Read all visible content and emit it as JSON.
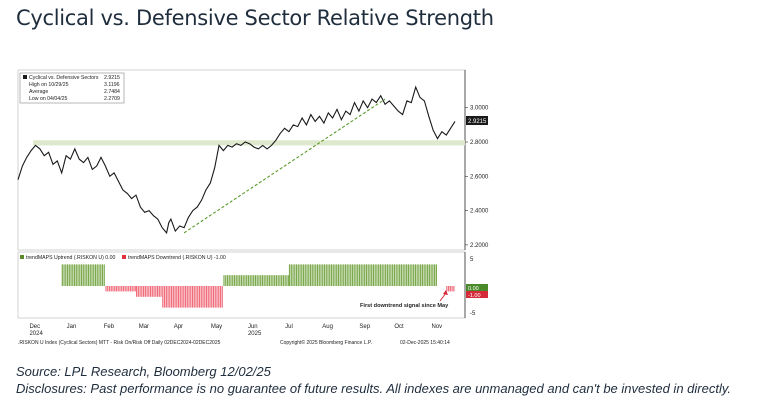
{
  "title": "Cyclical vs. Defensive Sector Relative Strength",
  "source": "Source: LPL Research, Bloomberg 12/02/25",
  "disclosure": "Disclosures: Past performance is no guarantee of future results. All indexes are unmanaged and can't be invested in directly.",
  "bloomberg_footer": {
    "left": ".RISKON U Index (Cyclical Sectors) MTT - Risk On/Risk Off Daily 02DEC2024-02DEC2025",
    "center": "Copyright© 2025 Bloomberg Finance L.P.",
    "right": "02-Dec-2025 15:40:14"
  },
  "colors": {
    "price_line": "#1a1a1a",
    "trendline": "#5a9a2a",
    "band": "#dde8cc",
    "uptrend": "#7aa84a",
    "downtrend": "#f06c7a",
    "current_box": "#1a1a1a"
  },
  "chart_data": [
    {
      "type": "line",
      "legend": [
        {
          "label": "Cyclical vs. Defensive Sectors",
          "value": "2.9215"
        },
        {
          "label": "High on 10/29/25",
          "value": "3.1196"
        },
        {
          "label": "Average",
          "value": "2.7484"
        },
        {
          "label": "Low on 04/04/25",
          "value": "2.2709"
        }
      ],
      "y_ticks": [
        "3.0000",
        "2.8000",
        "2.6000",
        "2.4000",
        "2.2000"
      ],
      "ylim": [
        2.17,
        3.22
      ],
      "current_label": "2.9215",
      "x_labels": [
        {
          "label": "Dec",
          "sub": "2024",
          "t": 0.04
        },
        {
          "label": "Jan",
          "sub": "",
          "t": 0.125
        },
        {
          "label": "Feb",
          "sub": "",
          "t": 0.21
        },
        {
          "label": "Mar",
          "sub": "",
          "t": 0.29
        },
        {
          "label": "Apr",
          "sub": "",
          "t": 0.37
        },
        {
          "label": "May",
          "sub": "",
          "t": 0.455
        },
        {
          "label": "Jun",
          "sub": "2025",
          "t": 0.54
        },
        {
          "label": "Jul",
          "sub": "",
          "t": 0.625
        },
        {
          "label": "Aug",
          "sub": "",
          "t": 0.71
        },
        {
          "label": "Sep",
          "sub": "",
          "t": 0.795
        },
        {
          "label": "Oct",
          "sub": "",
          "t": 0.875
        },
        {
          "label": "Nov",
          "sub": "",
          "t": 0.96
        }
      ],
      "series": [
        {
          "values": [
            [
              0.0,
              2.58
            ],
            [
              0.01,
              2.66
            ],
            [
              0.02,
              2.71
            ],
            [
              0.03,
              2.75
            ],
            [
              0.04,
              2.78
            ],
            [
              0.05,
              2.76
            ],
            [
              0.06,
              2.72
            ],
            [
              0.07,
              2.74
            ],
            [
              0.08,
              2.67
            ],
            [
              0.09,
              2.69
            ],
            [
              0.1,
              2.62
            ],
            [
              0.11,
              2.72
            ],
            [
              0.12,
              2.7
            ],
            [
              0.13,
              2.76
            ],
            [
              0.14,
              2.7
            ],
            [
              0.15,
              2.68
            ],
            [
              0.16,
              2.71
            ],
            [
              0.17,
              2.64
            ],
            [
              0.18,
              2.66
            ],
            [
              0.19,
              2.71
            ],
            [
              0.2,
              2.66
            ],
            [
              0.21,
              2.6
            ],
            [
              0.22,
              2.62
            ],
            [
              0.23,
              2.57
            ],
            [
              0.24,
              2.52
            ],
            [
              0.25,
              2.5
            ],
            [
              0.26,
              2.47
            ],
            [
              0.27,
              2.49
            ],
            [
              0.28,
              2.42
            ],
            [
              0.29,
              2.39
            ],
            [
              0.3,
              2.4
            ],
            [
              0.31,
              2.37
            ],
            [
              0.32,
              2.35
            ],
            [
              0.33,
              2.3
            ],
            [
              0.34,
              2.27
            ],
            [
              0.345,
              2.33
            ],
            [
              0.35,
              2.35
            ],
            [
              0.36,
              2.28
            ],
            [
              0.37,
              2.31
            ],
            [
              0.38,
              2.3
            ],
            [
              0.39,
              2.36
            ],
            [
              0.4,
              2.4
            ],
            [
              0.41,
              2.42
            ],
            [
              0.42,
              2.46
            ],
            [
              0.43,
              2.52
            ],
            [
              0.44,
              2.56
            ],
            [
              0.45,
              2.65
            ],
            [
              0.46,
              2.78
            ],
            [
              0.47,
              2.75
            ],
            [
              0.48,
              2.78
            ],
            [
              0.49,
              2.77
            ],
            [
              0.5,
              2.79
            ],
            [
              0.51,
              2.78
            ],
            [
              0.52,
              2.8
            ],
            [
              0.53,
              2.79
            ],
            [
              0.54,
              2.77
            ],
            [
              0.55,
              2.76
            ],
            [
              0.56,
              2.78
            ],
            [
              0.57,
              2.76
            ],
            [
              0.58,
              2.78
            ],
            [
              0.59,
              2.81
            ],
            [
              0.6,
              2.85
            ],
            [
              0.61,
              2.88
            ],
            [
              0.62,
              2.86
            ],
            [
              0.63,
              2.9
            ],
            [
              0.64,
              2.89
            ],
            [
              0.65,
              2.94
            ],
            [
              0.66,
              2.9
            ],
            [
              0.67,
              2.96
            ],
            [
              0.68,
              2.92
            ],
            [
              0.69,
              2.95
            ],
            [
              0.7,
              2.91
            ],
            [
              0.71,
              2.97
            ],
            [
              0.72,
              2.94
            ],
            [
              0.73,
              2.99
            ],
            [
              0.74,
              2.93
            ],
            [
              0.75,
              2.98
            ],
            [
              0.76,
              2.96
            ],
            [
              0.77,
              3.03
            ],
            [
              0.78,
              2.98
            ],
            [
              0.79,
              3.04
            ],
            [
              0.8,
              3.0
            ],
            [
              0.81,
              3.05
            ],
            [
              0.82,
              3.03
            ],
            [
              0.83,
              3.07
            ],
            [
              0.84,
              3.02
            ],
            [
              0.85,
              3.04
            ],
            [
              0.86,
              3.01
            ],
            [
              0.87,
              2.98
            ],
            [
              0.88,
              2.96
            ],
            [
              0.89,
              3.04
            ],
            [
              0.9,
              3.03
            ],
            [
              0.91,
              3.12
            ],
            [
              0.92,
              3.06
            ],
            [
              0.93,
              3.04
            ],
            [
              0.94,
              2.95
            ],
            [
              0.95,
              2.87
            ],
            [
              0.96,
              2.82
            ],
            [
              0.97,
              2.86
            ],
            [
              0.98,
              2.84
            ],
            [
              0.99,
              2.88
            ],
            [
              1.0,
              2.92
            ]
          ]
        }
      ],
      "trendline": [
        [
          0.38,
          2.27
        ],
        [
          0.84,
          3.05
        ]
      ],
      "support_band": [
        2.78,
        2.81
      ]
    },
    {
      "type": "bar",
      "legend": [
        {
          "label": "trendMAPS Uptrend (.RISKON U) 0.00"
        },
        {
          "label": "trendMAPS Downtrend (.RISKON U) -1.00"
        }
      ],
      "y_ticks": [
        "5",
        "-5"
      ],
      "ylim": [
        -5,
        5
      ],
      "boxes": [
        "0.00",
        "-1.00"
      ],
      "annotation": "First downtrend signal since May",
      "segments": [
        {
          "from": 0.1,
          "to": 0.2,
          "value": 4
        },
        {
          "from": 0.2,
          "to": 0.27,
          "value": -1
        },
        {
          "from": 0.27,
          "to": 0.33,
          "value": -2
        },
        {
          "from": 0.33,
          "to": 0.47,
          "value": -4
        },
        {
          "from": 0.47,
          "to": 0.62,
          "value": 2
        },
        {
          "from": 0.62,
          "to": 0.96,
          "value": 4
        },
        {
          "from": 0.98,
          "to": 1.0,
          "value": -1
        }
      ]
    }
  ]
}
